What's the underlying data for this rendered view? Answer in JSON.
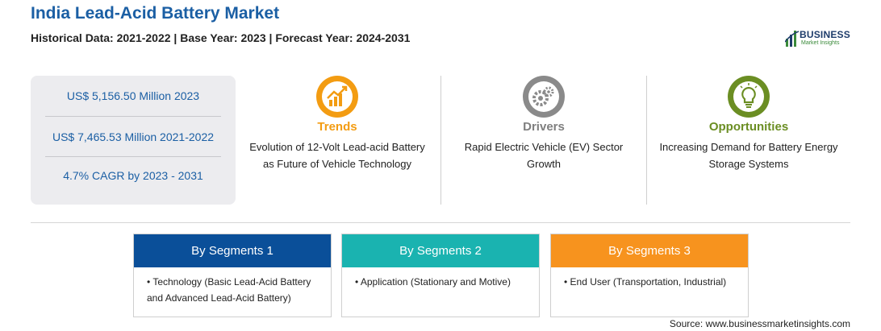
{
  "header": {
    "title": "India Lead-Acid Battery Market",
    "subtitle": "Historical Data: 2021-2022 | Base Year: 2023 | Forecast Year: 2024-2031"
  },
  "logo": {
    "main": "BUSINESS",
    "sub": "Market Insights"
  },
  "stats": [
    "US$ 5,156.50 Million 2023",
    "US$ 7,465.53 Million 2021-2022",
    "4.7% CAGR by 2023 - 2031"
  ],
  "pillars": [
    {
      "title": "Trends",
      "description": "Evolution of 12-Volt Lead-acid Battery as Future of Vehicle Technology",
      "color": "#f39c12",
      "icon": "growth-chart-icon"
    },
    {
      "title": "Drivers",
      "description": "Rapid Electric Vehicle (EV) Sector Growth",
      "color": "#7f7f7f",
      "icon": "gears-icon"
    },
    {
      "title": "Opportunities",
      "description": "Increasing Demand for Battery Energy Storage Systems",
      "color": "#6b8e23",
      "icon": "lightbulb-icon"
    }
  ],
  "segments": [
    {
      "title": "By Segments 1",
      "item": "Technology (Basic Lead-Acid Battery and Advanced Lead-Acid Battery)",
      "color": "#0a4f99"
    },
    {
      "title": "By Segments 2",
      "item": "Application (Stationary and Motive)",
      "color": "#1ab3b0"
    },
    {
      "title": "By Segments 3",
      "item": "End User (Transportation, Industrial)",
      "color": "#f7931e"
    }
  ],
  "source": "Source: www.businessmarketinsights.com"
}
